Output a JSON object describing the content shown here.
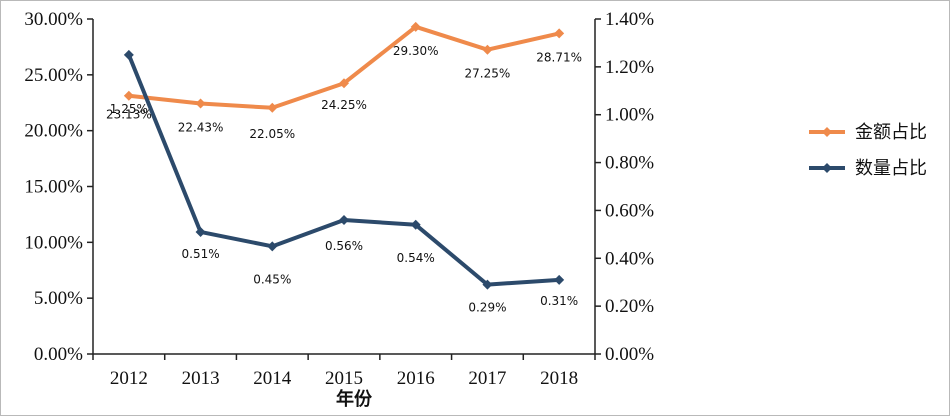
{
  "chart_data": {
    "type": "line",
    "xlabel": "年份",
    "categories": [
      "2012",
      "2013",
      "2014",
      "2015",
      "2016",
      "2017",
      "2018"
    ],
    "left_axis": {
      "min": 0,
      "max": 30,
      "step": 5,
      "ticks": [
        "0.00%",
        "5.00%",
        "10.00%",
        "15.00%",
        "20.00%",
        "25.00%",
        "30.00%"
      ]
    },
    "right_axis": {
      "min": 0,
      "max": 1.4,
      "step": 0.2,
      "ticks": [
        "0.00%",
        "0.20%",
        "0.40%",
        "0.60%",
        "0.80%",
        "1.00%",
        "1.20%",
        "1.40%"
      ]
    },
    "series": [
      {
        "name": "金额占比",
        "axis": "left",
        "color": "#ef8a4b",
        "values": [
          23.13,
          22.43,
          22.05,
          24.25,
          29.3,
          27.25,
          28.71
        ],
        "labels": [
          "23.13%",
          "22.43%",
          "22.05%",
          "24.25%",
          "29.30%",
          "27.25%",
          "28.71%"
        ]
      },
      {
        "name": "数量占比",
        "axis": "right",
        "color": "#2c4a6b",
        "values": [
          1.25,
          0.51,
          0.45,
          0.56,
          0.54,
          0.29,
          0.31
        ],
        "labels": [
          "1.25%",
          "0.51%",
          "0.45%",
          "0.56%",
          "0.54%",
          "0.29%",
          "0.31%"
        ]
      }
    ],
    "grid": false,
    "legend_position": "right"
  }
}
